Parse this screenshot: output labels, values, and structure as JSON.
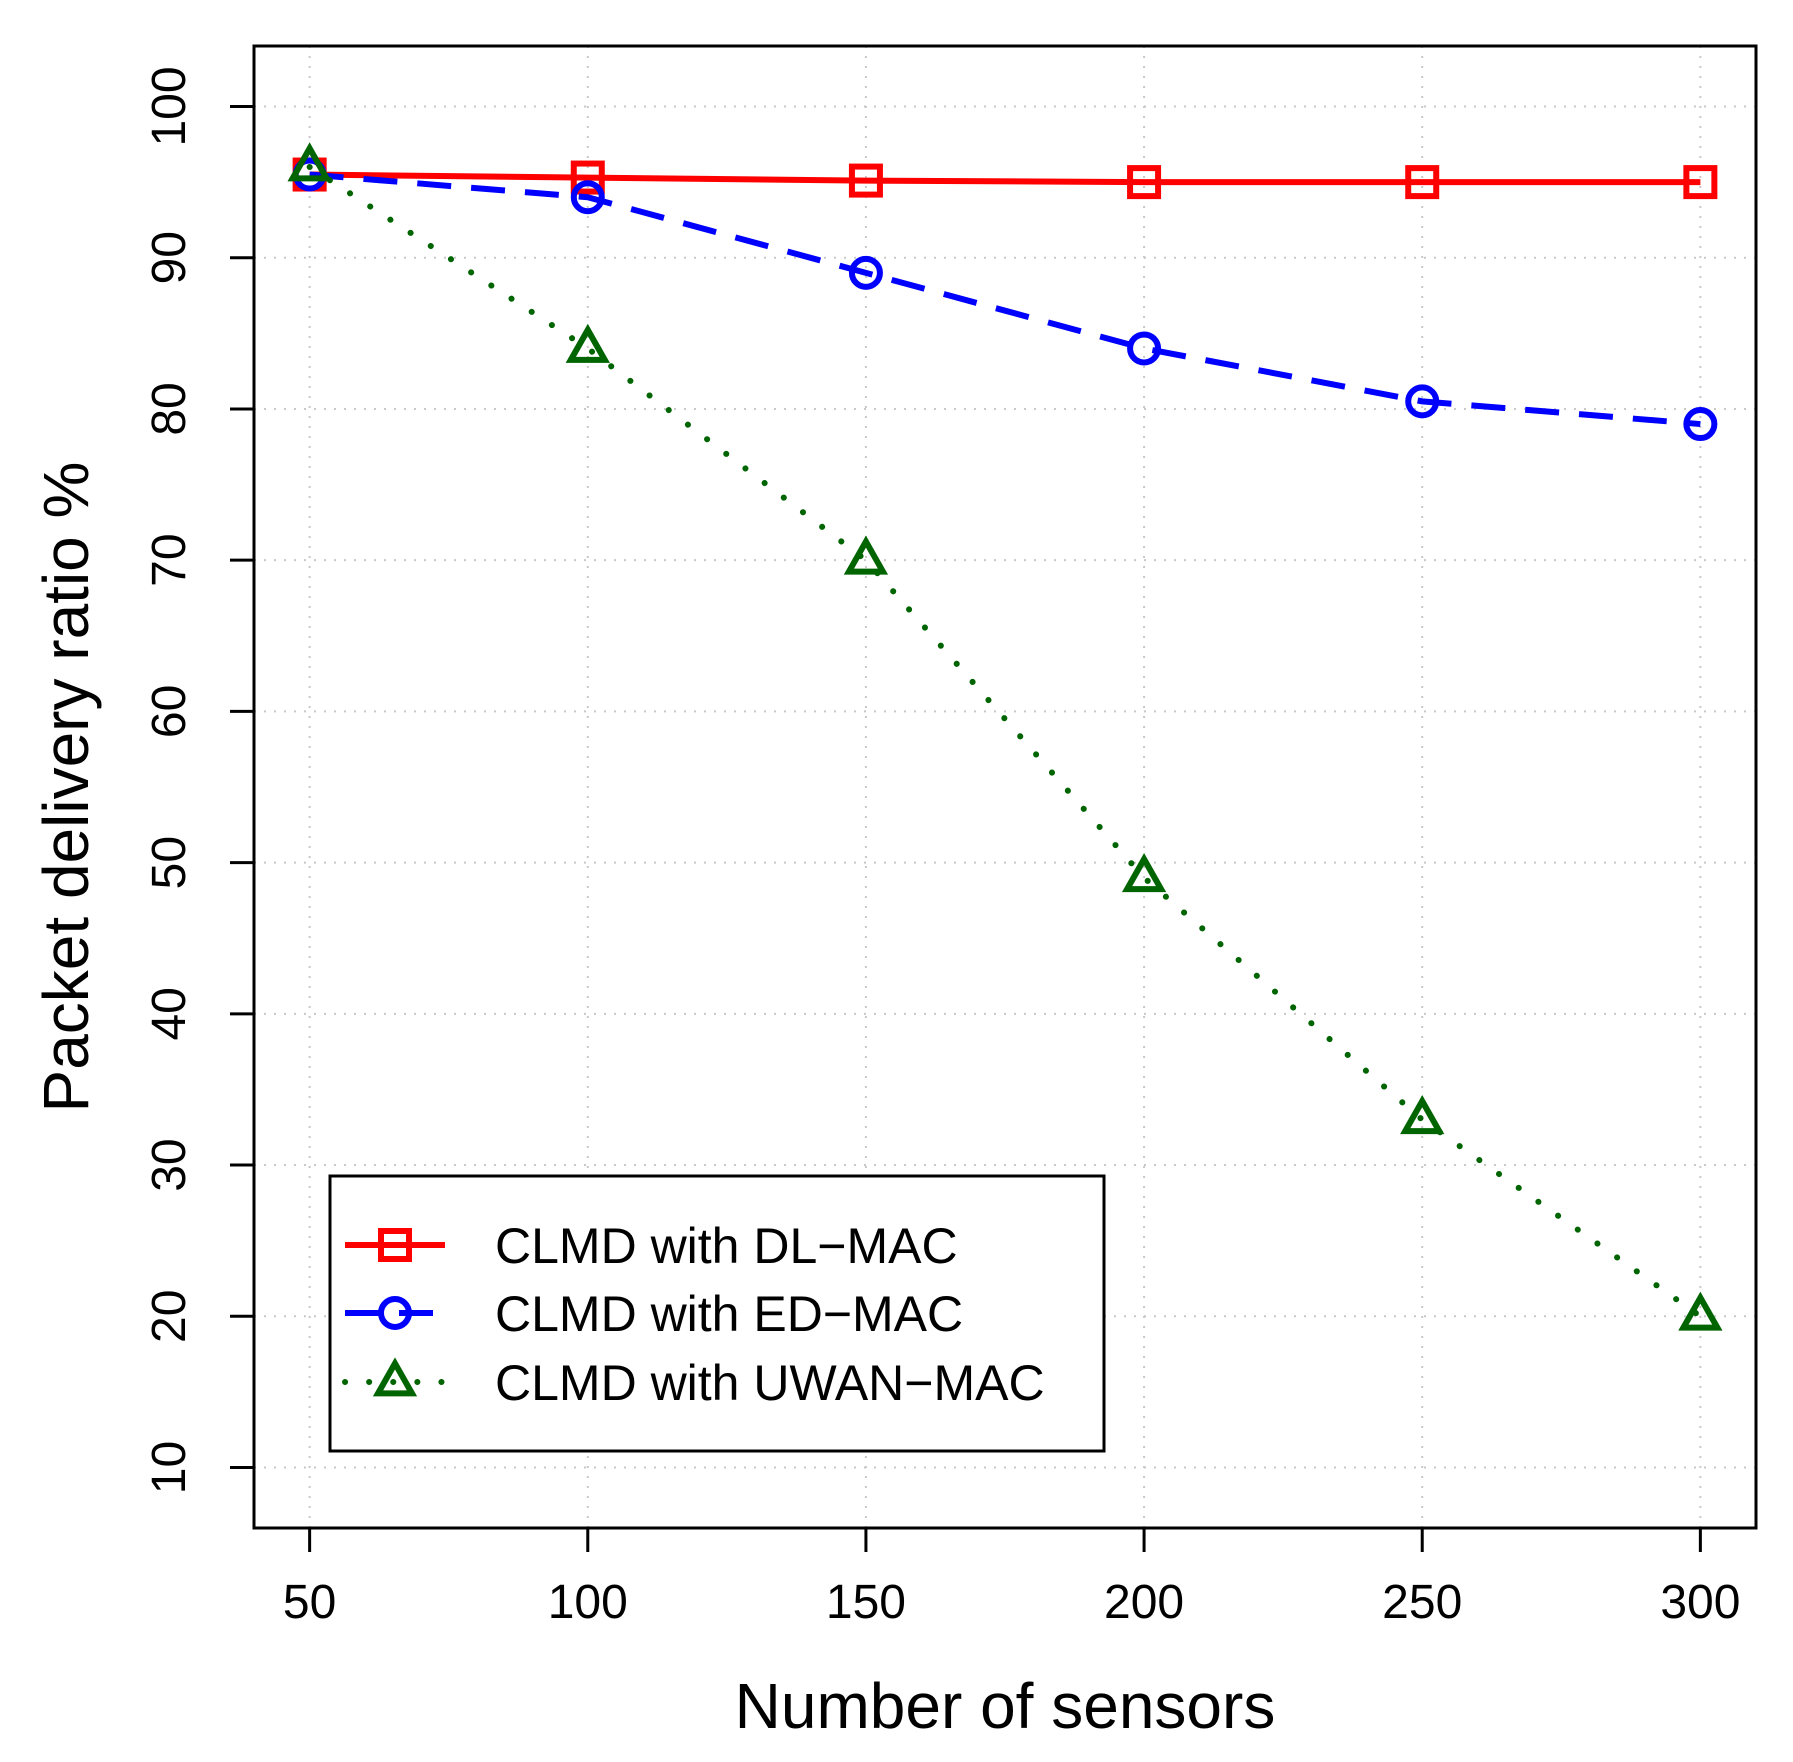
{
  "chart_data": {
    "type": "line",
    "title": "",
    "xlabel": "Number of sensors",
    "ylabel": "Packet delivery ratio %",
    "x": [
      50,
      100,
      150,
      200,
      250,
      300
    ],
    "xlim": [
      40,
      310
    ],
    "ylim": [
      6,
      104
    ],
    "xticks": [
      50,
      100,
      150,
      200,
      250,
      300
    ],
    "yticks": [
      10,
      20,
      30,
      40,
      50,
      60,
      70,
      80,
      90,
      100
    ],
    "grid": true,
    "legend_position": "bottom-left",
    "series": [
      {
        "name": "CLMD with DL−MAC",
        "values": [
          95.5,
          95.3,
          95.1,
          95.0,
          95.0,
          95.0
        ],
        "color": "#FF0000",
        "line_style": "solid",
        "marker": "square"
      },
      {
        "name": "CLMD with ED−MAC",
        "values": [
          95.5,
          94.0,
          89.0,
          84.0,
          80.5,
          79.0
        ],
        "color": "#0000FF",
        "line_style": "dashed",
        "marker": "circle"
      },
      {
        "name": "CLMD with UWAN−MAC",
        "values": [
          96.0,
          84.0,
          70.0,
          49.0,
          33.0,
          20.0
        ],
        "color": "#006400",
        "line_style": "dotted",
        "marker": "triangle"
      }
    ]
  }
}
